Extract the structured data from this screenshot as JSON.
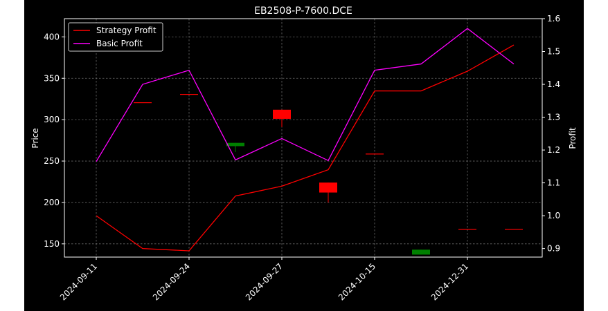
{
  "chart_data": {
    "type": "candlestick+line",
    "title": "EB2508-P-7600.DCE",
    "ylabel_left": "Price",
    "ylabel_right": "Profit",
    "ylim_left": [
      134,
      422
    ],
    "ylim_right": [
      0.874,
      1.6
    ],
    "yticks_left": [
      150,
      200,
      250,
      300,
      350,
      400
    ],
    "yticks_right": [
      "0.9",
      "1.0",
      "1.1",
      "1.2",
      "1.3",
      "1.4",
      "1.5",
      "1.6"
    ],
    "x_tick_labels": [
      {
        "index": 0,
        "label": "2024-09-11"
      },
      {
        "index": 2,
        "label": "2024-09-24"
      },
      {
        "index": 4,
        "label": "2024-09-27"
      },
      {
        "index": 6,
        "label": "2024-10-15"
      },
      {
        "index": 8,
        "label": "2024-12-31"
      }
    ],
    "n_points": 10,
    "grid": true,
    "legend_position": "upper-left",
    "candles": [
      {
        "i": 1,
        "open": 321,
        "close": 321,
        "high": 321,
        "low": 321
      },
      {
        "i": 2,
        "open": 331,
        "close": 331,
        "high": 331,
        "low": 331
      },
      {
        "i": 3,
        "open": 268,
        "close": 272,
        "high": 272,
        "low": 261
      },
      {
        "i": 4,
        "open": 312,
        "close": 301,
        "high": 312,
        "low": 291
      },
      {
        "i": 5,
        "open": 224,
        "close": 212,
        "high": 224,
        "low": 200
      },
      {
        "i": 6,
        "open": 259,
        "close": 259,
        "high": 259,
        "low": 259
      },
      {
        "i": 7,
        "open": 137,
        "close": 143,
        "high": 143,
        "low": 137
      },
      {
        "i": 8,
        "open": 168,
        "close": 168,
        "high": 168,
        "low": 168
      },
      {
        "i": 9,
        "open": 168,
        "close": 168,
        "high": 168,
        "low": 168
      }
    ],
    "series": [
      {
        "name": "Strategy Profit",
        "color": "#ff0000",
        "axis": "right",
        "values": [
          1.0,
          0.9,
          0.893,
          1.06,
          1.09,
          1.14,
          1.38,
          1.38,
          1.44,
          1.52
        ]
      },
      {
        "name": "Basic Profit",
        "color": "#ff00ff",
        "axis": "right",
        "values": [
          1.165,
          1.4,
          1.443,
          1.17,
          1.235,
          1.168,
          1.443,
          1.462,
          1.57,
          1.462
        ]
      }
    ],
    "colors": {
      "background": "#000000",
      "up": "#008000",
      "down": "#ff0000",
      "foreground": "#ffffff"
    }
  }
}
